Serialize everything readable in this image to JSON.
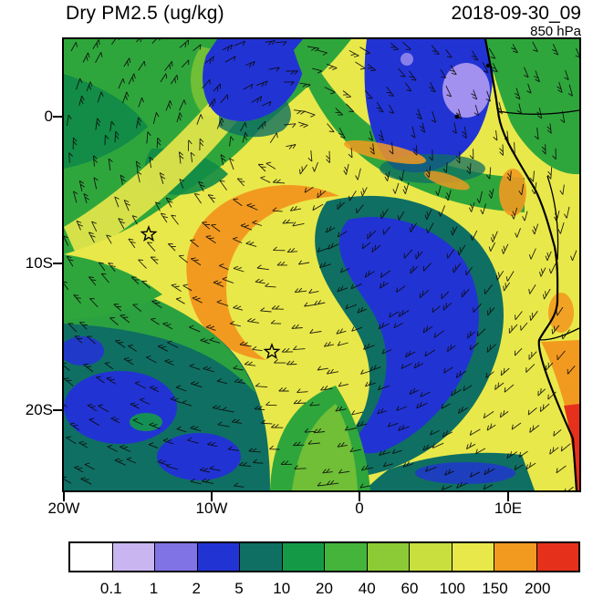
{
  "chart_data": {
    "type": "heatmap",
    "subtype": "filled-contour-map-with-wind-barbs",
    "title": "Dry PM2.5 (ug/kg)",
    "valid_time": "2018-09-30_09",
    "level": "850 hPa",
    "units": "ug/kg",
    "x_axis": {
      "ticks": [
        "20W",
        "10W",
        "0",
        "10E"
      ],
      "range_deg_lon": [
        -20,
        15
      ]
    },
    "y_axis": {
      "ticks": [
        "0",
        "10S",
        "20S"
      ],
      "range_deg_lat": [
        5,
        -25
      ]
    },
    "colorbar": {
      "labels": [
        "0.1",
        "1",
        "2",
        "5",
        "10",
        "20",
        "40",
        "60",
        "100",
        "150",
        "200"
      ],
      "colors": [
        "#FFFFFF",
        "#C9B6F0",
        "#8073E6",
        "#2233D4",
        "#0F6F62",
        "#149A46",
        "#45B43A",
        "#8CCB35",
        "#C9DF3E",
        "#E9E84A",
        "#F29A20",
        "#E5311C"
      ]
    },
    "overlays": [
      "wind-barbs",
      "coastline-west-africa",
      "country-borders"
    ],
    "markers": [
      {
        "type": "star",
        "lon_deg": -14.3,
        "lat_deg": -8.0
      },
      {
        "type": "star",
        "lon_deg": -5.9,
        "lat_deg": -16.0
      }
    ]
  }
}
